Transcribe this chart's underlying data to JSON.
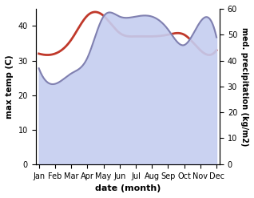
{
  "months": [
    "Jan",
    "Feb",
    "Mar",
    "Apr",
    "May",
    "Jun",
    "Jul",
    "Aug",
    "Sep",
    "Oct",
    "Nov",
    "Dec"
  ],
  "max_temp": [
    32,
    32,
    36,
    43,
    43,
    38,
    37,
    37,
    37.5,
    37.5,
    33,
    33
  ],
  "precipitation": [
    37,
    31,
    35,
    41,
    57,
    57,
    57,
    57,
    52,
    46,
    55,
    49
  ],
  "temp_color": "#c0392b",
  "precip_line_color": "#8080b0",
  "precip_fill_color": "#c5cdf0",
  "background_color": "#ffffff",
  "ylabel_left": "max temp (C)",
  "ylabel_right": "med. precipitation (kg/m2)",
  "xlabel": "date (month)",
  "ylim_left": [
    0,
    45
  ],
  "ylim_right": [
    0,
    60
  ],
  "yticks_left": [
    0,
    10,
    20,
    30,
    40
  ],
  "yticks_right": [
    0,
    10,
    20,
    30,
    40,
    50,
    60
  ]
}
